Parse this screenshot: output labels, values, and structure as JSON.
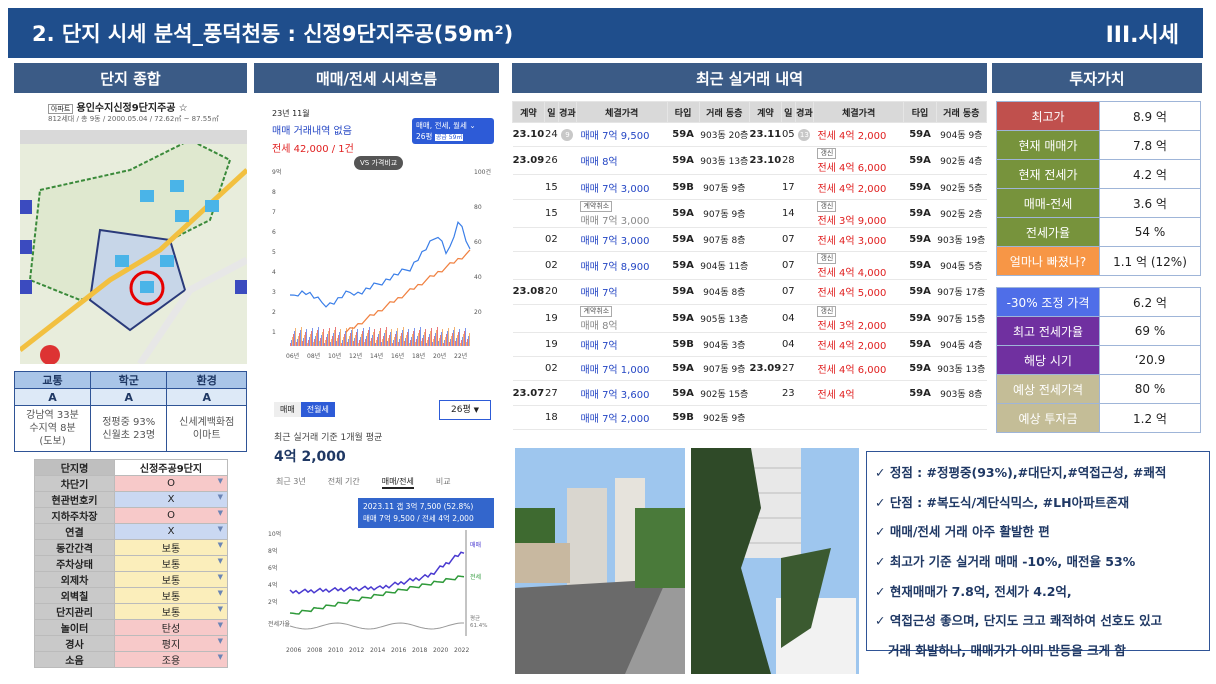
{
  "header": {
    "title": "2. 단지 시세 분석_풍덕천동 : 신정9단지주공(59m²)",
    "section": "III.시세"
  },
  "sections": {
    "summary": "단지 종합",
    "trend": "매매/전세 시세흐름",
    "deals": "최근 실거래 내역",
    "invest": "투자가치"
  },
  "map": {
    "badge": "아파트",
    "name": "용인수지신정9단지주공",
    "info": "812세대 / 총 9동 / 2000.05.04 / 72.62㎡ ~ 87.55㎡"
  },
  "ratings": {
    "headers": [
      "교통",
      "학군",
      "환경"
    ],
    "grades": [
      "A",
      "A",
      "A"
    ],
    "details": [
      [
        "강남역 33분",
        "수지역 8분",
        "(도보)"
      ],
      [
        "정평중 93%",
        "신월초 23명"
      ],
      [
        "신세계백화점",
        "이마트"
      ]
    ]
  },
  "detail": {
    "headers": [
      "단지명",
      "신정주공9단지"
    ],
    "rows": [
      {
        "label": "차단기",
        "value": "O",
        "color": "pink"
      },
      {
        "label": "현관번호키",
        "value": "X",
        "color": "blue"
      },
      {
        "label": "지하주차장",
        "value": "O",
        "color": "pink"
      },
      {
        "label": "연결",
        "value": "X",
        "color": "blue"
      },
      {
        "label": "동간간격",
        "value": "보통",
        "color": "yellow"
      },
      {
        "label": "주차상태",
        "value": "보통",
        "color": "yellow"
      },
      {
        "label": "외제차",
        "value": "보통",
        "color": "yellow"
      },
      {
        "label": "외벽칠",
        "value": "보통",
        "color": "yellow"
      },
      {
        "label": "단지관리",
        "value": "보통",
        "color": "yellow"
      },
      {
        "label": "놀이터",
        "value": "탄성",
        "color": "pink"
      },
      {
        "label": "경사",
        "value": "평지",
        "color": "pink"
      },
      {
        "label": "소음",
        "value": "조용",
        "color": "pink"
      }
    ]
  },
  "trend_top": {
    "month": "23년 11월",
    "sale": "매매 거래내역 없음",
    "jeonse": "전세 42,000 / 1건",
    "filter": "매매, 전세, 월세",
    "size": "26평",
    "size_sub": "공급 59㎡",
    "compare": "VS 가격비교",
    "y_left": [
      "9억",
      "8",
      "7",
      "6",
      "5",
      "4",
      "3",
      "2",
      "1"
    ],
    "y_right": [
      "100건",
      "80",
      "60",
      "40",
      "20"
    ],
    "x_labels": [
      "06년",
      "08년",
      "10년",
      "12년",
      "14년",
      "16년",
      "18년",
      "20년",
      "22년"
    ]
  },
  "trend_bottom": {
    "tabs": [
      "매매",
      "전월세"
    ],
    "size": "26평",
    "caption": "최근 실거래 기준 1개월 평균",
    "price": "4억 2,000",
    "periods": [
      "최근 3년",
      "전체 기간",
      "매매/전세",
      "비교"
    ],
    "tooltip1": "2023.11 갭 3억 7,500 (52.8%)",
    "tooltip2": "매매 7억 9,500 / 전세 4억 2,000",
    "y_labels": [
      "10억",
      "8억",
      "6억",
      "4억",
      "2억"
    ],
    "ratio_label": "전세가율",
    "x_labels": [
      "2006",
      "2008",
      "2010",
      "2012",
      "2014",
      "2016",
      "2018",
      "2020",
      "2022"
    ],
    "legend_sale": "매매",
    "legend_jeonse": "전세",
    "legend_avg": "평균",
    "legend_avg_val": "61.4%"
  },
  "deals_headers": [
    "계약",
    "일",
    "경과",
    "체결가격",
    "타입",
    "거래 동층"
  ],
  "deals_left": [
    {
      "m": "23.10",
      "d": "24",
      "e": "9",
      "tag": "",
      "p": "매매 7억 9,500",
      "k": "sale",
      "t": "59A",
      "f": "903동 20층"
    },
    {
      "m": "23.09",
      "d": "26",
      "e": "",
      "tag": "",
      "p": "매매 8억",
      "k": "sale",
      "t": "59A",
      "f": "903동 13층"
    },
    {
      "m": "",
      "d": "15",
      "e": "",
      "tag": "",
      "p": "매매 7억 3,000",
      "k": "sale",
      "t": "59B",
      "f": "907동 9층"
    },
    {
      "m": "",
      "d": "15",
      "e": "",
      "tag": "계약취소",
      "p": "매매 7억 3,000",
      "k": "cancel",
      "t": "59A",
      "f": "907동 9층"
    },
    {
      "m": "",
      "d": "02",
      "e": "",
      "tag": "",
      "p": "매매 7억 3,000",
      "k": "sale",
      "t": "59A",
      "f": "907동 8층"
    },
    {
      "m": "",
      "d": "02",
      "e": "",
      "tag": "",
      "p": "매매 7억 8,900",
      "k": "sale",
      "t": "59A",
      "f": "904동 11층"
    },
    {
      "m": "23.08",
      "d": "20",
      "e": "",
      "tag": "",
      "p": "매매 7억",
      "k": "sale",
      "t": "59A",
      "f": "904동 8층"
    },
    {
      "m": "",
      "d": "19",
      "e": "",
      "tag": "계약취소",
      "p": "매매 8억",
      "k": "cancel",
      "t": "59A",
      "f": "905동 13층"
    },
    {
      "m": "",
      "d": "19",
      "e": "",
      "tag": "",
      "p": "매매 7억",
      "k": "sale",
      "t": "59B",
      "f": "904동 3층"
    },
    {
      "m": "",
      "d": "02",
      "e": "",
      "tag": "",
      "p": "매매 7억 1,000",
      "k": "sale",
      "t": "59A",
      "f": "907동 9층"
    },
    {
      "m": "23.07",
      "d": "27",
      "e": "",
      "tag": "",
      "p": "매매 7억 3,600",
      "k": "sale",
      "t": "59A",
      "f": "902동 15층"
    },
    {
      "m": "",
      "d": "18",
      "e": "",
      "tag": "",
      "p": "매매 7억 2,000",
      "k": "sale",
      "t": "59B",
      "f": "902동 9층"
    }
  ],
  "deals_right": [
    {
      "m": "23.11",
      "d": "05",
      "e": "13",
      "tag": "",
      "p": "전세 4억 2,000",
      "k": "jeonse",
      "t": "59A",
      "f": "904동 9층"
    },
    {
      "m": "23.10",
      "d": "28",
      "e": "",
      "tag": "갱신",
      "p": "전세 4억 6,000",
      "k": "jeonse",
      "t": "59A",
      "f": "902동 4층"
    },
    {
      "m": "",
      "d": "17",
      "e": "",
      "tag": "",
      "p": "전세 4억 2,000",
      "k": "jeonse",
      "t": "59A",
      "f": "902동 5층"
    },
    {
      "m": "",
      "d": "14",
      "e": "",
      "tag": "갱신",
      "p": "전세 3억 9,000",
      "k": "jeonse",
      "t": "59A",
      "f": "902동 2층"
    },
    {
      "m": "",
      "d": "07",
      "e": "",
      "tag": "",
      "p": "전세 4억 3,000",
      "k": "jeonse",
      "t": "59A",
      "f": "903동 19층"
    },
    {
      "m": "",
      "d": "07",
      "e": "",
      "tag": "갱신",
      "p": "전세 4억 4,000",
      "k": "jeonse",
      "t": "59A",
      "f": "904동 5층"
    },
    {
      "m": "",
      "d": "07",
      "e": "",
      "tag": "",
      "p": "전세 4억 5,000",
      "k": "jeonse",
      "t": "59A",
      "f": "907동 17층"
    },
    {
      "m": "",
      "d": "04",
      "e": "",
      "tag": "갱신",
      "p": "전세 3억 2,000",
      "k": "jeonse",
      "t": "59A",
      "f": "907동 15층"
    },
    {
      "m": "",
      "d": "04",
      "e": "",
      "tag": "",
      "p": "전세 4억 2,000",
      "k": "jeonse",
      "t": "59A",
      "f": "904동 4층"
    },
    {
      "m": "23.09",
      "d": "27",
      "e": "",
      "tag": "",
      "p": "전세 4억 6,000",
      "k": "jeonse",
      "t": "59A",
      "f": "903동 13층"
    },
    {
      "m": "",
      "d": "23",
      "e": "",
      "tag": "",
      "p": "전세 4억",
      "k": "jeonse",
      "t": "59A",
      "f": "903동 8층"
    }
  ],
  "invest1": [
    {
      "label": "최고가",
      "value": "8.9 억",
      "color": "#c0504d"
    },
    {
      "label": "현재 매매가",
      "value": "7.8 억",
      "color": "#77933c"
    },
    {
      "label": "현재 전세가",
      "value": "4.2 억",
      "color": "#77933c"
    },
    {
      "label": "매매-전세",
      "value": "3.6 억",
      "color": "#77933c"
    },
    {
      "label": "전세가율",
      "value": "54 %",
      "color": "#77933c"
    },
    {
      "label": "얼마나 빠졌나?",
      "value": "1.1 억 (12%)",
      "color": "#f79646"
    }
  ],
  "invest2": [
    {
      "label": "-30% 조정 가격",
      "value": "6.2 억",
      "color": "#4f6ee8"
    },
    {
      "label": "최고 전세가율",
      "value": "69 %",
      "color": "#7030a0"
    },
    {
      "label": "해당 시기",
      "value": "‘20.9",
      "color": "#7030a0"
    },
    {
      "label": "예상 전세가격",
      "value": "80 %",
      "color": "#c4bd97"
    },
    {
      "label": "예상 투자금",
      "value": "1.2 억",
      "color": "#c4bd97"
    }
  ],
  "notes": [
    "✓ 정점 : #정평중(93%),#대단지,#역접근성, #쾌적",
    "✓ 단점 : #복도식/계단식믹스, #LH아파트존재",
    "✓ 매매/전세 거래 아주 활발한 편",
    "✓ 최고가 기준 실거래 매매 -10%, 매전율 53%",
    "✓ 현재매매가 7.8억, 전세가 4.2억,",
    "✓ 역접근성 좋으며, 단지도 크고 쾌적하여 선호도 있고",
    "   거래 화발하나, 매매가가 이미 반등을 크게 함"
  ]
}
